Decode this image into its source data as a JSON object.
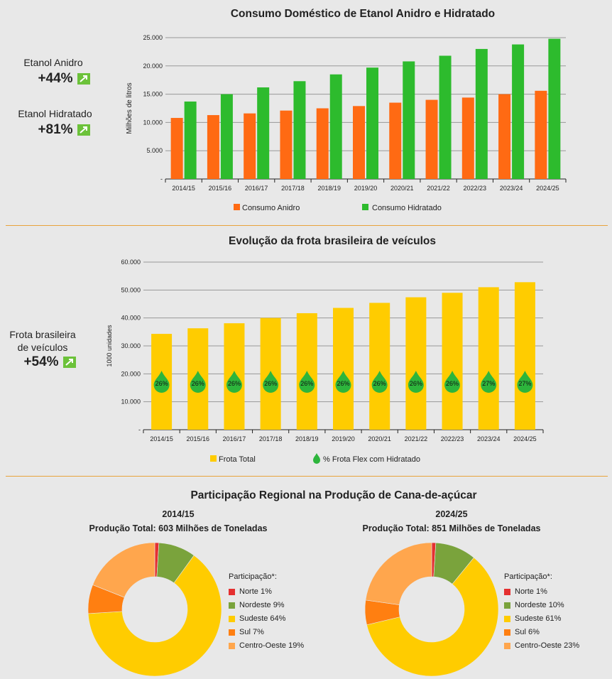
{
  "side": {
    "anidro_label": "Etanol Anidro",
    "anidro_pct": "+44%",
    "hidratado_label": "Etanol Hidratado",
    "hidratado_pct": "+81%",
    "frota_label_line1": "Frota brasileira",
    "frota_label_line2": "de veículos",
    "frota_pct": "+54%"
  },
  "colors": {
    "anidro": "#ff6a13",
    "hidratado": "#2dbb2d",
    "frota": "#ffcc00",
    "drop": "#2db53c",
    "divider": "#e8a33c"
  },
  "chart_data": [
    {
      "type": "bar",
      "title": "Consumo Doméstico de Etanol Anidro e Hidratado",
      "ylabel": "Milhões de litros",
      "xlabel": "",
      "categories": [
        "2014/15",
        "2015/16",
        "2016/17",
        "2017/18",
        "2018/19",
        "2019/20",
        "2020/21",
        "2021/22",
        "2022/23",
        "2023/24",
        "2024/25"
      ],
      "series": [
        {
          "name": "Consumo Anidro",
          "values": [
            10800,
            11300,
            11600,
            12100,
            12500,
            12900,
            13500,
            14000,
            14400,
            15000,
            15600
          ]
        },
        {
          "name": "Consumo Hidratado",
          "values": [
            13700,
            15000,
            16200,
            17300,
            18500,
            19700,
            20800,
            21800,
            23000,
            23800,
            24800
          ]
        }
      ],
      "ylim": [
        0,
        25000
      ],
      "yticks": [
        "-",
        "5.000",
        "10.000",
        "15.000",
        "20.000",
        "25.000"
      ],
      "grid": true,
      "legend_position": "bottom"
    },
    {
      "type": "bar",
      "title": "Evolução da frota brasileira de veículos",
      "ylabel": "1000 unidades",
      "xlabel": "",
      "categories": [
        "2014/15",
        "2015/16",
        "2016/17",
        "2017/18",
        "2018/19",
        "2019/20",
        "2020/21",
        "2021/22",
        "2022/23",
        "2023/24",
        "2024/25"
      ],
      "series": [
        {
          "name": "Frota Total",
          "values": [
            34300,
            36300,
            38100,
            40000,
            41700,
            43600,
            45400,
            47400,
            49000,
            51000,
            52800
          ]
        }
      ],
      "annotations": {
        "name": "% Frota Flex com Hidratado",
        "values": [
          "26%",
          "26%",
          "26%",
          "26%",
          "26%",
          "26%",
          "26%",
          "26%",
          "26%",
          "27%",
          "27%"
        ]
      },
      "ylim": [
        0,
        60000
      ],
      "yticks": [
        "-",
        "10.000",
        "20.000",
        "30.000",
        "40.000",
        "50.000",
        "60.000"
      ],
      "grid": true,
      "legend_position": "bottom"
    },
    {
      "type": "pie",
      "title": "Participação Regional na Produção  de Cana-de-açúcar",
      "subtitle_year": "2014/15",
      "subtitle_total": "Produção Total: 603 Milhões de Toneladas",
      "legend_title": "Participação*:",
      "slices": [
        {
          "label": "Norte 1%",
          "value": 1,
          "color": "#e53030"
        },
        {
          "label": "Nordeste 9%",
          "value": 9,
          "color": "#7aa33c"
        },
        {
          "label": "Sudeste 64%",
          "value": 64,
          "color": "#ffcc00"
        },
        {
          "label": "Sul 7%",
          "value": 7,
          "color": "#ff7f11"
        },
        {
          "label": "Centro-Oeste 19%",
          "value": 19,
          "color": "#ffa64d"
        }
      ]
    },
    {
      "type": "pie",
      "subtitle_year": "2024/25",
      "subtitle_total": "Produção Total: 851 Milhões de Toneladas",
      "legend_title": "Participação*:",
      "slices": [
        {
          "label": "Norte 1%",
          "value": 1,
          "color": "#e53030"
        },
        {
          "label": "Nordeste 10%",
          "value": 10,
          "color": "#7aa33c"
        },
        {
          "label": "Sudeste 61%",
          "value": 61,
          "color": "#ffcc00"
        },
        {
          "label": "Sul 6%",
          "value": 6,
          "color": "#ff7f11"
        },
        {
          "label": "Centro-Oeste 23%",
          "value": 23,
          "color": "#ffa64d"
        }
      ]
    }
  ]
}
